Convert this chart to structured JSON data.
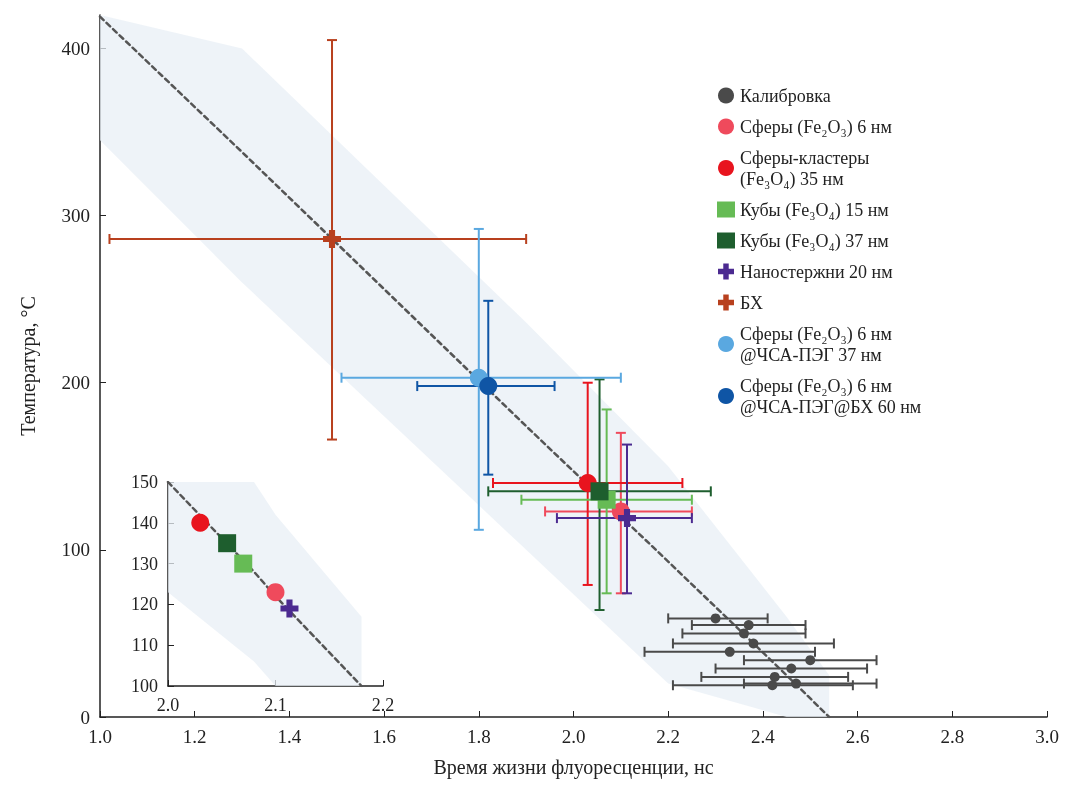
{
  "chart_data": [
    {
      "type": "scatter",
      "xlabel": "Время жизни флуоресценции, нс",
      "ylabel": "Температура, °C",
      "xlim": [
        1.0,
        3.0
      ],
      "ylim": [
        0,
        420
      ],
      "xticks": [
        {
          "value": 1.0,
          "label": "1.0"
        },
        {
          "value": 1.2,
          "label": "1.2"
        },
        {
          "value": 1.4,
          "label": "1.4"
        },
        {
          "value": 1.6,
          "label": "1.6"
        },
        {
          "value": 1.8,
          "label": "1.8"
        },
        {
          "value": 2.0,
          "label": "2.0"
        },
        {
          "value": 2.2,
          "label": "2.2"
        },
        {
          "value": 2.4,
          "label": "2.4"
        },
        {
          "value": 2.6,
          "label": "2.6"
        },
        {
          "value": 2.8,
          "label": "2.8"
        },
        {
          "value": 3.0,
          "label": "3.0"
        }
      ],
      "yticks": [
        0,
        100,
        200,
        300,
        400
      ],
      "legend": "top right",
      "grid": false,
      "series": [
        {
          "type": "line",
          "color": "#555555",
          "line_style": "dashed",
          "marker": "none",
          "x": [
            1.0,
            1.3,
            1.6,
            1.9,
            2.2,
            2.45,
            2.54
          ],
          "values": [
            419,
            338,
            256,
            174,
            93,
            25,
            0
          ],
          "lower": [
            345,
            260,
            180,
            100,
            20,
            0,
            0
          ],
          "upper": [
            420,
            400,
            318,
            236,
            150,
            60,
            25
          ]
        },
        {
          "name": "Калибровка",
          "color": "#4a4a4a",
          "marker": "circle",
          "x": [
            2.3,
            2.37,
            2.36,
            2.38,
            2.33,
            2.5,
            2.46,
            2.425,
            2.42,
            2.47
          ],
          "values": [
            59,
            55,
            50,
            44,
            39,
            34,
            29,
            24,
            19,
            20
          ],
          "xerrors": [
            [
              2.2,
              2.41
            ],
            [
              2.25,
              2.49
            ],
            [
              2.23,
              2.49
            ],
            [
              2.21,
              2.55
            ],
            [
              2.15,
              2.51
            ],
            [
              2.36,
              2.64
            ],
            [
              2.3,
              2.62
            ],
            [
              2.27,
              2.58
            ],
            [
              2.21,
              2.59
            ],
            [
              2.36,
              2.64
            ]
          ]
        },
        {
          "name": "Сферы (Fe₂O₃) 6 нм",
          "color": "#ef4a5c",
          "marker": "circle",
          "x": [
            2.1
          ],
          "values": [
            123
          ],
          "xerrors": [
            [
              1.94,
              2.25
            ]
          ],
          "errors": [
            [
              74,
              170
            ]
          ]
        },
        {
          "name": "Сферы-кластеры\n(Fe₃O₄) 35 нм",
          "color": "#e8141e",
          "marker": "circle",
          "x": [
            2.03
          ],
          "values": [
            140
          ],
          "xerrors": [
            [
              1.83,
              2.23
            ]
          ],
          "errors": [
            [
              79,
              200
            ]
          ]
        },
        {
          "name": "Кубы (Fe₃O₄) 15 нм",
          "color": "#66bb55",
          "marker": "square",
          "x": [
            2.07
          ],
          "values": [
            130
          ],
          "xerrors": [
            [
              1.89,
              2.25
            ]
          ],
          "errors": [
            [
              74,
              184
            ]
          ]
        },
        {
          "name": "Кубы (Fe₃O₄) 37 нм",
          "color": "#1e5e2e",
          "marker": "square",
          "x": [
            2.055
          ],
          "values": [
            135
          ],
          "xerrors": [
            [
              1.82,
              2.29
            ]
          ],
          "errors": [
            [
              64,
              202
            ]
          ]
        },
        {
          "name": "Наностержни 20 нм",
          "color": "#4b2a90",
          "marker": "cross",
          "x": [
            2.113
          ],
          "values": [
            119
          ],
          "xerrors": [
            [
              1.965,
              2.25
            ]
          ],
          "errors": [
            [
              74,
              163
            ]
          ]
        },
        {
          "name": "БХ",
          "color": "#b8401e",
          "marker": "cross",
          "x": [
            1.49
          ],
          "values": [
            286
          ],
          "xerrors": [
            [
              1.02,
              1.9
            ]
          ],
          "errors": [
            [
              166,
              405
            ]
          ]
        },
        {
          "name": "Сферы (Fe₂O₃) 6 нм\n@ЧСА-ПЭГ 37 нм",
          "color": "#5aa8e0",
          "marker": "circle",
          "x": [
            1.8
          ],
          "values": [
            203
          ],
          "xerrors": [
            [
              1.51,
              2.1
            ]
          ],
          "errors": [
            [
              112,
              292
            ]
          ]
        },
        {
          "name": "Сферы (Fe₂O₃) 6 нм\n@ЧСА-ПЭГ@БХ 60 нм",
          "color": "#0f55a5",
          "marker": "circle",
          "x": [
            1.82
          ],
          "values": [
            198
          ],
          "xerrors": [
            [
              1.67,
              1.96
            ]
          ],
          "errors": [
            [
              145,
              249
            ]
          ]
        }
      ]
    },
    {
      "type": "scatter",
      "xlim": [
        2.0,
        2.2
      ],
      "ylim": [
        100,
        150
      ],
      "xticks": [
        {
          "value": 2.0,
          "label": "2.0"
        },
        {
          "value": 2.1,
          "label": "2.1"
        },
        {
          "value": 2.2,
          "label": "2.2"
        }
      ],
      "yticks": [
        100,
        110,
        120,
        130,
        140,
        150
      ],
      "grid": false,
      "series": [
        {
          "type": "line",
          "color": "#555555",
          "line_style": "dashed",
          "marker": "none",
          "x": [
            2.0,
            2.08,
            2.1,
            2.18
          ],
          "values": [
            150,
            128,
            122,
            100
          ],
          "lower": [
            123,
            106,
            100,
            100
          ],
          "upper": [
            150,
            150,
            142,
            117
          ]
        },
        {
          "color": "#e8141e",
          "marker": "circle",
          "x": [
            2.03
          ],
          "values": [
            140
          ]
        },
        {
          "color": "#1e5e2e",
          "marker": "square",
          "x": [
            2.055
          ],
          "values": [
            135
          ]
        },
        {
          "color": "#66bb55",
          "marker": "square",
          "x": [
            2.07
          ],
          "values": [
            130
          ]
        },
        {
          "color": "#ef4a5c",
          "marker": "circle",
          "x": [
            2.1
          ],
          "values": [
            123
          ]
        },
        {
          "color": "#4b2a90",
          "marker": "cross",
          "x": [
            2.113
          ],
          "values": [
            119
          ]
        }
      ]
    }
  ]
}
